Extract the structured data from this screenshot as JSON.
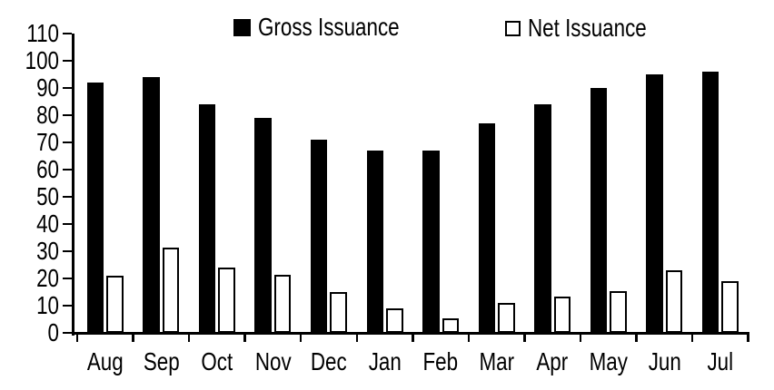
{
  "chart_data": {
    "type": "bar",
    "title": "",
    "xlabel": "",
    "ylabel": "",
    "categories": [
      "Aug",
      "Sep",
      "Oct",
      "Nov",
      "Dec",
      "Jan",
      "Feb",
      "Mar",
      "Apr",
      "May",
      "Jun",
      "Jul"
    ],
    "series": [
      {
        "name": "Gross Issuance",
        "marker": "filled-square",
        "fill": "#000000",
        "stroke": "#000000",
        "values": [
          92,
          94,
          84,
          79,
          71,
          67,
          67,
          77,
          84,
          90,
          95,
          96
        ]
      },
      {
        "name": "Net Issuance",
        "marker": "open-square",
        "fill": "#ffffff",
        "stroke": "#000000",
        "values": [
          21,
          31.5,
          24,
          21.5,
          15,
          9,
          5.5,
          11,
          13.5,
          15.5,
          23,
          19
        ]
      }
    ],
    "ylim": [
      0,
      110
    ],
    "ytick_step": 10,
    "ytick_labels": [
      "0",
      "10",
      "20",
      "30",
      "40",
      "50",
      "60",
      "70",
      "80",
      "90",
      "100",
      "110"
    ],
    "grid": false,
    "legend_position": "top",
    "colors": {
      "foreground": "#000000",
      "background": "#ffffff"
    }
  }
}
